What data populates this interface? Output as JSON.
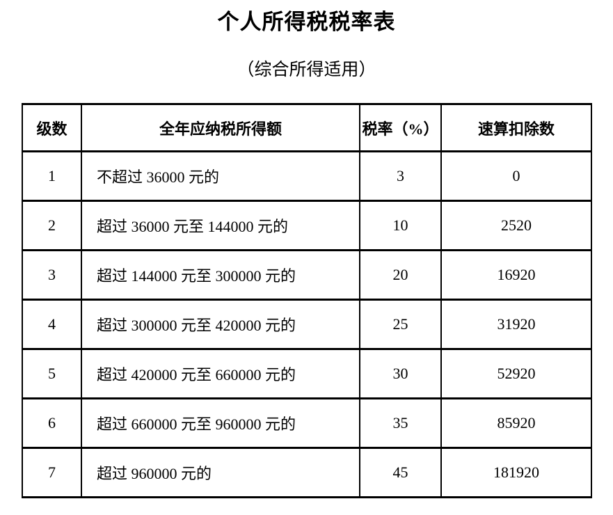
{
  "title": "个人所得税税率表",
  "subtitle": "（综合所得适用）",
  "chart_data": {
    "type": "table",
    "columns": [
      "级数",
      "全年应纳税所得额",
      "税率（%）",
      "速算扣除数"
    ],
    "rows": [
      [
        "1",
        "不超过 36000 元的",
        "3",
        "0"
      ],
      [
        "2",
        "超过 36000 元至 144000 元的",
        "10",
        "2520"
      ],
      [
        "3",
        "超过 144000 元至 300000 元的",
        "20",
        "16920"
      ],
      [
        "4",
        "超过 300000 元至 420000 元的",
        "25",
        "31920"
      ],
      [
        "5",
        "超过 420000 元至 660000 元的",
        "30",
        "52920"
      ],
      [
        "6",
        "超过 660000 元至 960000 元的",
        "35",
        "85920"
      ],
      [
        "7",
        "超过 960000 元的",
        "45",
        "181920"
      ]
    ]
  },
  "colors": {
    "text": "#000000",
    "background": "#ffffff",
    "border": "#000000"
  }
}
